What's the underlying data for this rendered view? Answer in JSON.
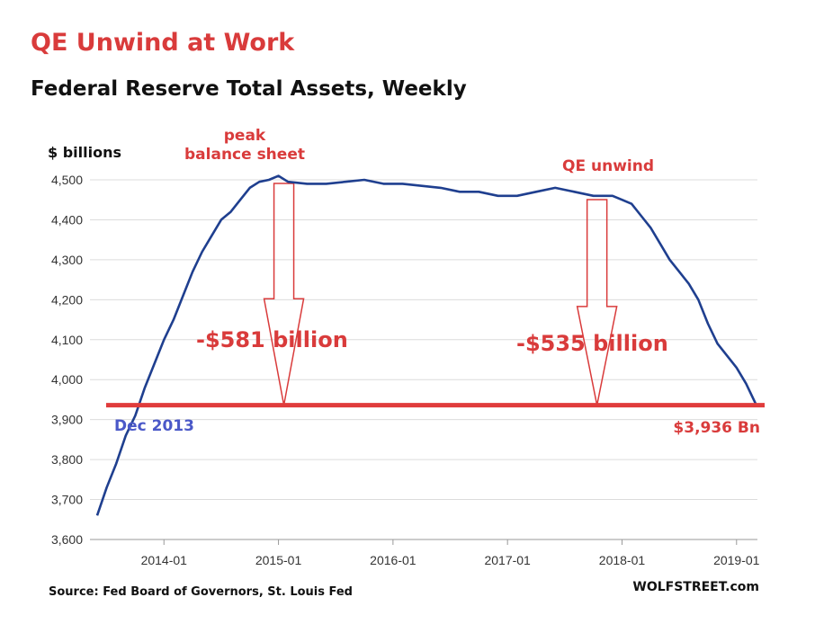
{
  "chart_data": {
    "type": "line",
    "title": "QE Unwind at Work",
    "subtitle": "Federal Reserve Total Assets, Weekly",
    "ylabel": "$ billions",
    "xlabel": "",
    "ylim": [
      3600,
      4500
    ],
    "yticks": [
      "3,600",
      "3,700",
      "3,800",
      "3,900",
      "4,000",
      "4,100",
      "4,200",
      "4,300",
      "4,400",
      "4,500"
    ],
    "xticks": [
      "2014-01",
      "2015-01",
      "2016-01",
      "2017-01",
      "2018-01",
      "2019-01"
    ],
    "grid": "horizontal",
    "line_color": "#1f3f8f",
    "annotation_color": "#d93b3b",
    "baseline_color": "#e03c3c",
    "start_label_color": "#4a58c8",
    "baseline": 3936,
    "series": [
      {
        "x": [
          "2013-06",
          "2013-07",
          "2013-08",
          "2013-09",
          "2013-10",
          "2013-11",
          "2013-12",
          "2014-01",
          "2014-02",
          "2014-03",
          "2014-04",
          "2014-05",
          "2014-06",
          "2014-07",
          "2014-08",
          "2014-09",
          "2014-10",
          "2014-11",
          "2014-12",
          "2015-01",
          "2015-02",
          "2015-04",
          "2015-06",
          "2015-08",
          "2015-10",
          "2015-12",
          "2016-02",
          "2016-04",
          "2016-06",
          "2016-08",
          "2016-10",
          "2016-12",
          "2017-02",
          "2017-04",
          "2017-06",
          "2017-08",
          "2017-10",
          "2017-12",
          "2018-01",
          "2018-02",
          "2018-03",
          "2018-04",
          "2018-05",
          "2018-06",
          "2018-07",
          "2018-08",
          "2018-09",
          "2018-10",
          "2018-11",
          "2018-12",
          "2019-01",
          "2019-02",
          "2019-03"
        ],
        "values": [
          3660,
          3730,
          3790,
          3860,
          3910,
          3980,
          4040,
          4100,
          4150,
          4210,
          4270,
          4320,
          4360,
          4400,
          4420,
          4450,
          4480,
          4495,
          4500,
          4510,
          4495,
          4490,
          4490,
          4495,
          4500,
          4490,
          4490,
          4485,
          4480,
          4470,
          4470,
          4460,
          4460,
          4470,
          4480,
          4470,
          4460,
          4460,
          4450,
          4440,
          4410,
          4380,
          4340,
          4300,
          4270,
          4240,
          4200,
          4140,
          4090,
          4060,
          4030,
          3990,
          3940
        ]
      }
    ],
    "annotations": {
      "peak_line1": "peak",
      "peak_line2": "balance sheet",
      "peak_amount": "-$581 billion",
      "unwind_label": "QE unwind",
      "unwind_amount": "-$535 billion",
      "start_label": "Dec 2013",
      "end_label": "$3,936 Bn"
    }
  },
  "source": "Source: Fed Board of Governors, St. Louis Fed",
  "brand": "WOLFSTREET.com"
}
